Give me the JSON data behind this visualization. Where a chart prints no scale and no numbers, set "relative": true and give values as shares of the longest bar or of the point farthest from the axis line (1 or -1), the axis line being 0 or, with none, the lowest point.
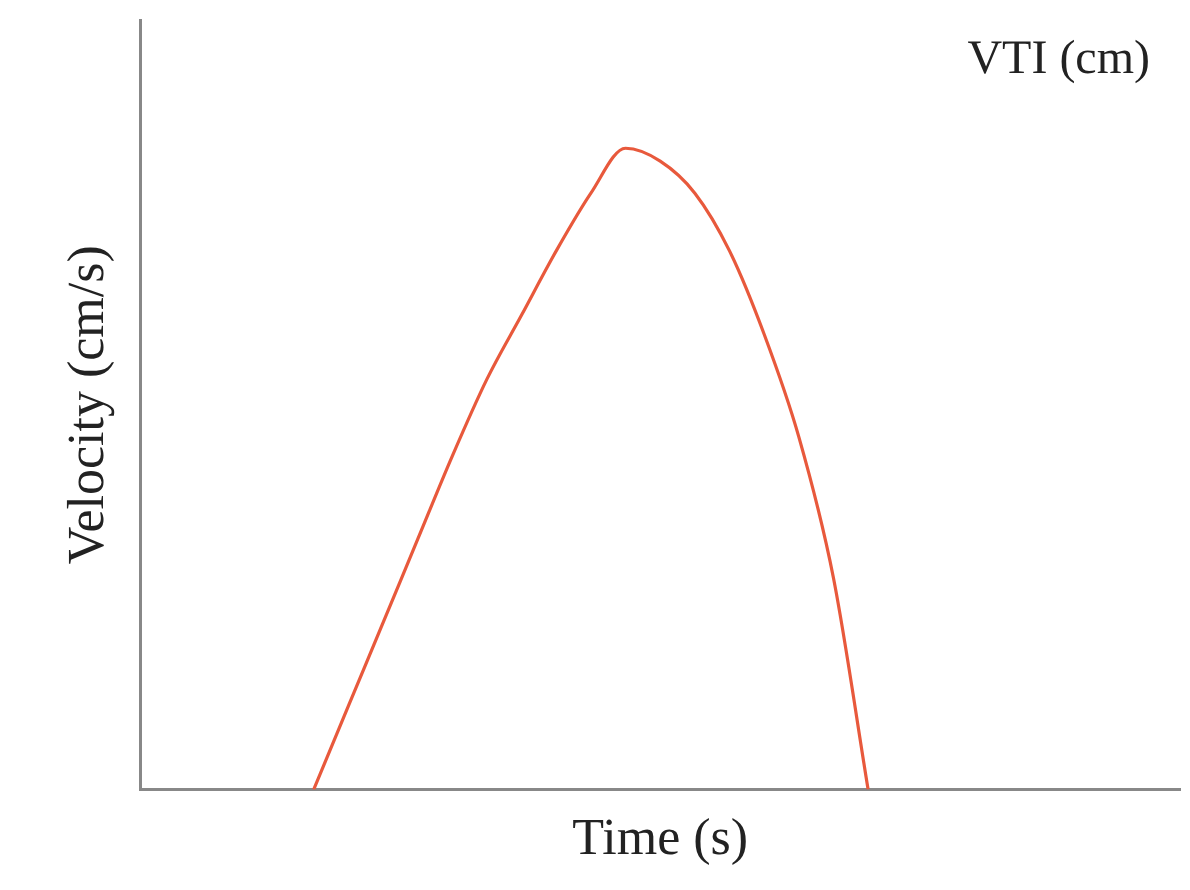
{
  "chart_data": {
    "type": "line",
    "relative": true,
    "xlabel": "Time (s)",
    "ylabel": "Velocity (cm/s)",
    "annotations": [
      "VTI (cm)"
    ],
    "marker": "none",
    "grid": false,
    "legend": false,
    "categories": [
      null,
      null,
      null,
      null,
      null,
      null,
      null,
      null,
      null,
      null,
      null,
      null,
      null,
      null,
      null,
      null,
      null,
      null,
      null,
      null,
      null,
      null,
      null,
      null,
      null,
      null,
      null,
      null,
      null,
      null,
      null
    ],
    "series": [
      {
        "color": "#e8593c",
        "values": [
          null,
          null,
          null,
          null,
          null,
          0,
          0.13,
          0.26,
          0.39,
          0.52,
          0.64,
          0.74,
          0.84,
          0.93,
          1,
          0.98,
          0.93,
          0.84,
          0.71,
          0.55,
          0.33,
          0,
          null,
          null,
          null,
          null,
          null,
          null,
          null,
          null,
          null
        ]
      }
    ]
  }
}
